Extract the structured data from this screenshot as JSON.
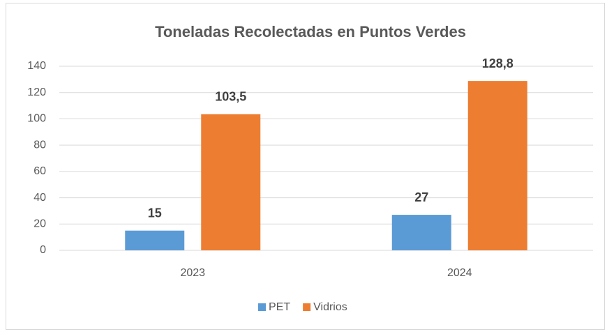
{
  "chart_data": {
    "type": "bar",
    "title": "Toneladas Recolectadas en Puntos Verdes",
    "categories": [
      "2023",
      "2024"
    ],
    "series": [
      {
        "name": "PET",
        "color": "#5b9bd5",
        "values": [
          15,
          27
        ],
        "value_labels": [
          "15",
          "27"
        ]
      },
      {
        "name": "Vidrios",
        "color": "#ed7d31",
        "values": [
          103.5,
          128.8
        ],
        "value_labels": [
          "103,5",
          "128,8"
        ]
      }
    ],
    "ylim": [
      0,
      140
    ],
    "yticks": [
      0,
      20,
      40,
      60,
      80,
      100,
      120,
      140
    ],
    "grid": true,
    "legend": "bottom"
  }
}
